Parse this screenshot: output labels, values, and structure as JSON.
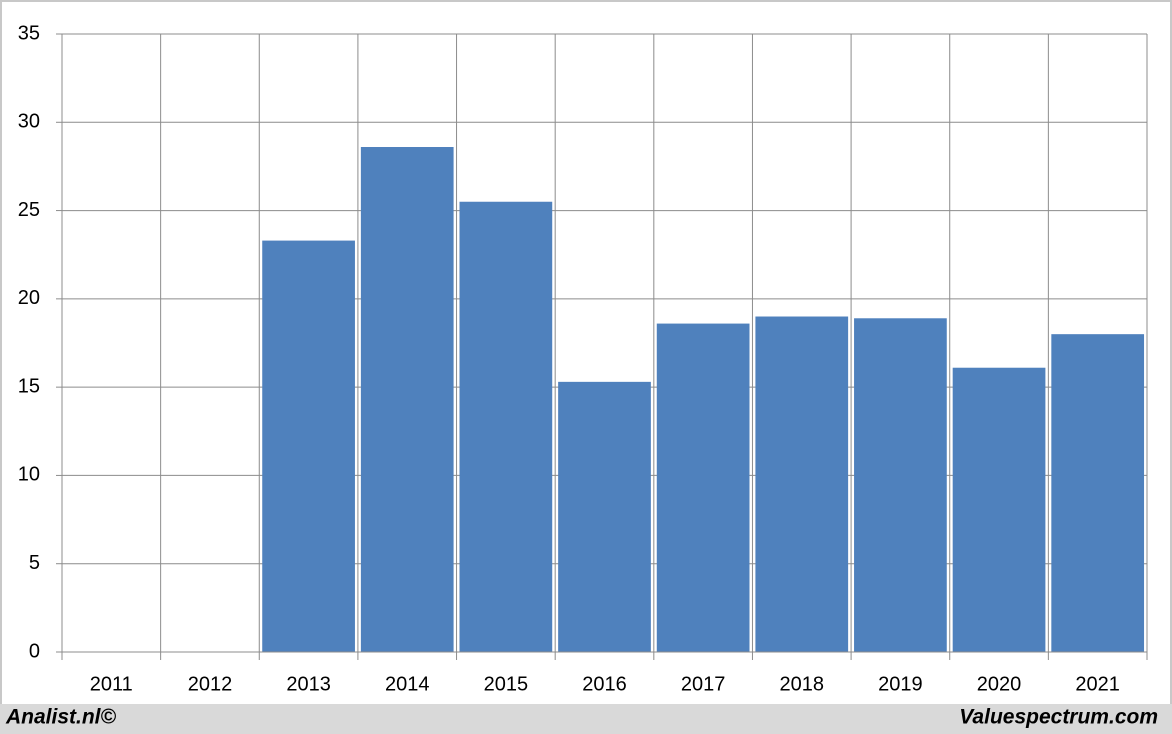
{
  "chart_data": {
    "type": "bar",
    "categories": [
      "2011",
      "2012",
      "2013",
      "2014",
      "2015",
      "2016",
      "2017",
      "2018",
      "2019",
      "2020",
      "2021"
    ],
    "values": [
      null,
      null,
      23.3,
      28.6,
      25.5,
      15.3,
      18.6,
      19.0,
      18.9,
      16.1,
      18.0
    ],
    "color": "#4f81bd",
    "ylim": [
      0,
      35
    ],
    "yticks": [
      0,
      5,
      10,
      15,
      20,
      25,
      30,
      35
    ],
    "grid": true,
    "source_left": "Analist.nl©",
    "source_right": "Valuespectrum.com"
  }
}
